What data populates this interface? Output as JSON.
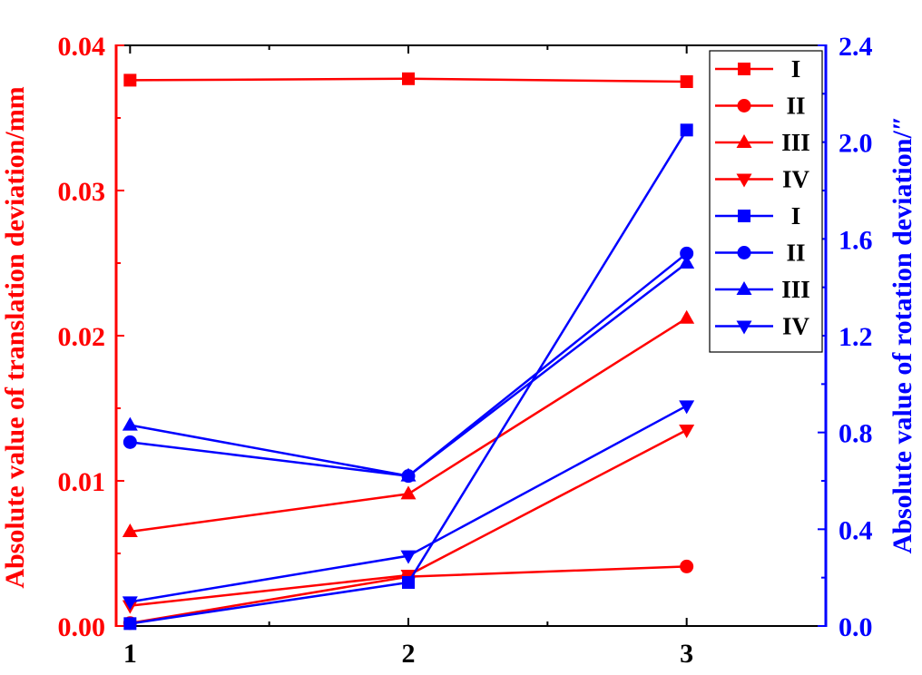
{
  "chart_data": {
    "type": "line",
    "title": "",
    "x": [
      1,
      2,
      3
    ],
    "x_tick_labels": [
      "1",
      "2",
      "3"
    ],
    "xlabel": "",
    "xlim": [
      0.95,
      3.5
    ],
    "left_axis": {
      "label": "Absolute value of translation deviation/mm",
      "ylim": [
        0,
        0.04
      ],
      "ticks": [
        0.0,
        0.01,
        0.02,
        0.03,
        0.04
      ],
      "tick_labels": [
        "0.00",
        "0.01",
        "0.02",
        "0.03",
        "0.04"
      ],
      "color": "#ff0000"
    },
    "right_axis": {
      "label": "Absolute value of rotation deviation/″",
      "ylim": [
        0,
        2.4
      ],
      "ticks": [
        0.0,
        0.4,
        0.8,
        1.2,
        1.6,
        2.0,
        2.4
      ],
      "tick_labels": [
        "0.0",
        "0.4",
        "0.8",
        "1.2",
        "1.6",
        "2.0",
        "2.4"
      ],
      "color": "#0000ff"
    },
    "grid": false,
    "legend_position": "top-right",
    "series": [
      {
        "name": "I",
        "axis": "left",
        "marker": "square",
        "color": "#ff0000",
        "values": [
          0.0376,
          0.0377,
          0.0375
        ]
      },
      {
        "name": "II",
        "axis": "left",
        "marker": "circle",
        "color": "#ff0000",
        "values": [
          0.0002,
          0.0034,
          0.0041
        ]
      },
      {
        "name": "III",
        "axis": "left",
        "marker": "triangle-up",
        "color": "#ff0000",
        "values": [
          0.0065,
          0.0091,
          0.0212
        ]
      },
      {
        "name": "IV",
        "axis": "left",
        "marker": "triangle-down",
        "color": "#ff0000",
        "values": [
          0.0014,
          0.0035,
          0.0135
        ]
      },
      {
        "name": "I",
        "axis": "right",
        "marker": "square",
        "color": "#0000ff",
        "values": [
          0.01,
          0.18,
          2.05
        ]
      },
      {
        "name": "II",
        "axis": "right",
        "marker": "circle",
        "color": "#0000ff",
        "values": [
          0.76,
          0.62,
          1.54
        ]
      },
      {
        "name": "III",
        "axis": "right",
        "marker": "triangle-up",
        "color": "#0000ff",
        "values": [
          0.83,
          0.62,
          1.5
        ]
      },
      {
        "name": "IV",
        "axis": "right",
        "marker": "triangle-down",
        "color": "#0000ff",
        "values": [
          0.1,
          0.29,
          0.91
        ]
      }
    ]
  }
}
